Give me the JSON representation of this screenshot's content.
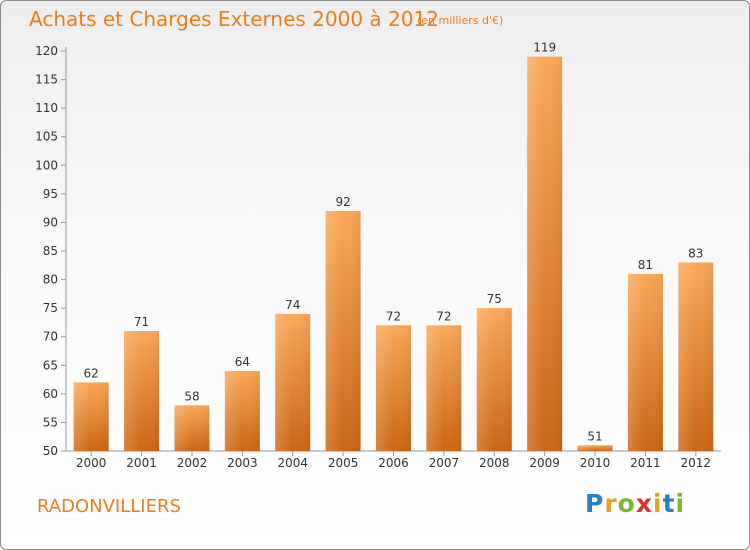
{
  "title": "Achats et Charges Externes 2000 à 2012",
  "unit": "(en milliers d'€)",
  "place": "RADONVILLIERS",
  "brand": "Proxiti",
  "colors": {
    "accent": "#f07c18",
    "bar_top": "#f9a857",
    "bar_bottom": "#cc6614",
    "axis": "#999999",
    "text": "#333333"
  },
  "chart_data": {
    "type": "bar",
    "title": "Achats et Charges Externes 2000 à 2012",
    "xlabel": "",
    "ylabel": "",
    "categories": [
      "2000",
      "2001",
      "2002",
      "2003",
      "2004",
      "2005",
      "2006",
      "2007",
      "2008",
      "2009",
      "2010",
      "2011",
      "2012"
    ],
    "values": [
      62,
      71,
      58,
      64,
      74,
      92,
      72,
      72,
      75,
      119,
      51,
      81,
      83
    ],
    "ylim": [
      50,
      120
    ],
    "yticks": [
      50,
      55,
      60,
      65,
      70,
      75,
      80,
      85,
      90,
      95,
      100,
      105,
      110,
      115,
      120
    ],
    "grid": false,
    "data_labels": true
  }
}
